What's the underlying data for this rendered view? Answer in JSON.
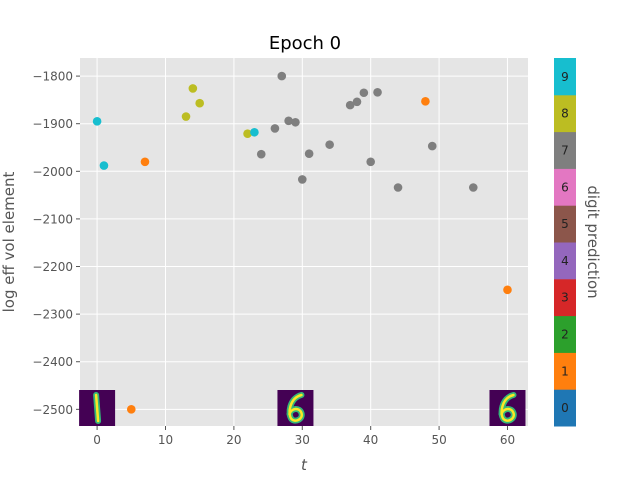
{
  "chart_data": {
    "type": "scatter",
    "title": "Epoch 0",
    "xlabel": "t",
    "ylabel": "log eff vol element",
    "xlim": [
      -2.5,
      63
    ],
    "ylim": [
      -2535,
      -1762
    ],
    "xticks": [
      0,
      10,
      20,
      30,
      40,
      50,
      60
    ],
    "yticks": [
      -1800,
      -1900,
      -2000,
      -2100,
      -2200,
      -2300,
      -2400,
      -2500
    ],
    "tick_labels_x": [
      "0",
      "10",
      "20",
      "30",
      "40",
      "50",
      "60"
    ],
    "tick_labels_y": [
      "−1800",
      "−1900",
      "−2000",
      "−2100",
      "−2200",
      "−2300",
      "−2400",
      "−2500"
    ],
    "grid": true,
    "points": [
      {
        "x": 0,
        "y": -1895,
        "digit": 9
      },
      {
        "x": 1,
        "y": -1988,
        "digit": 9
      },
      {
        "x": 5,
        "y": -2500,
        "digit": 1
      },
      {
        "x": 7,
        "y": -1980,
        "digit": 1
      },
      {
        "x": 13,
        "y": -1885,
        "digit": 8
      },
      {
        "x": 14,
        "y": -1826,
        "digit": 8
      },
      {
        "x": 15,
        "y": -1857,
        "digit": 8
      },
      {
        "x": 22,
        "y": -1921,
        "digit": 8
      },
      {
        "x": 23,
        "y": -1918,
        "digit": 9
      },
      {
        "x": 24,
        "y": -1964,
        "digit": 7
      },
      {
        "x": 26,
        "y": -1910,
        "digit": 7
      },
      {
        "x": 27,
        "y": -1800,
        "digit": 7
      },
      {
        "x": 28,
        "y": -1894,
        "digit": 7
      },
      {
        "x": 29,
        "y": -1897,
        "digit": 7
      },
      {
        "x": 30,
        "y": -2017,
        "digit": 7
      },
      {
        "x": 31,
        "y": -1963,
        "digit": 7
      },
      {
        "x": 34,
        "y": -1944,
        "digit": 7
      },
      {
        "x": 37,
        "y": -1861,
        "digit": 7
      },
      {
        "x": 38,
        "y": -1854,
        "digit": 7
      },
      {
        "x": 39,
        "y": -1835,
        "digit": 7
      },
      {
        "x": 40,
        "y": -1980,
        "digit": 7
      },
      {
        "x": 41,
        "y": -1834,
        "digit": 7
      },
      {
        "x": 44,
        "y": -2034,
        "digit": 7
      },
      {
        "x": 48,
        "y": -1853,
        "digit": 1
      },
      {
        "x": 49,
        "y": -1947,
        "digit": 7
      },
      {
        "x": 55,
        "y": -2034,
        "digit": 7
      },
      {
        "x": 60,
        "y": -2249,
        "digit": 1
      }
    ],
    "thumbnails": [
      {
        "x": 0,
        "digit_shown": "1"
      },
      {
        "x": 29,
        "digit_shown": "6"
      },
      {
        "x": 60,
        "digit_shown": "6"
      }
    ],
    "colorbar": {
      "label": "digit prediction",
      "categories": [
        "0",
        "1",
        "2",
        "3",
        "4",
        "5",
        "6",
        "7",
        "8",
        "9"
      ],
      "colors": [
        "#1f77b4",
        "#ff7f0e",
        "#2ca02c",
        "#d62728",
        "#9467bd",
        "#8c564b",
        "#e377c2",
        "#7f7f7f",
        "#bcbd22",
        "#17becf"
      ]
    }
  }
}
